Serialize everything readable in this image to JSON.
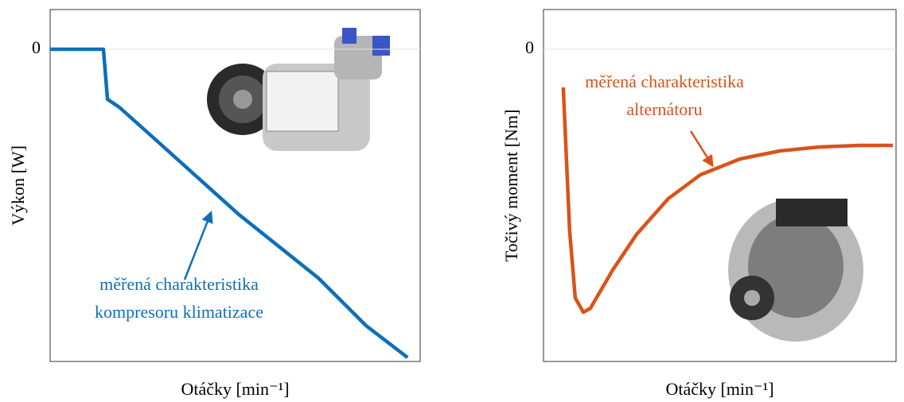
{
  "chart_data": [
    {
      "type": "line",
      "xlabel": "Otáčky [min⁻¹]",
      "ylabel": "Výkon [W]",
      "xlim": [
        0,
        100
      ],
      "ylim": [
        -7.86,
        1
      ],
      "yticks": [
        0
      ],
      "grid": true,
      "annotation": [
        "měřená charakteristika",
        "kompresoru klimatizace"
      ],
      "x": [
        0,
        14.4,
        15.5,
        18.7,
        29.5,
        51,
        72.5,
        85.4,
        96.6
      ],
      "values": [
        0,
        0,
        -1.26,
        -1.46,
        -2.36,
        -4.16,
        -5.76,
        -6.96,
        -7.76
      ],
      "color": "#0d6fba"
    },
    {
      "type": "line",
      "xlabel": "Otáčky [min⁻¹]",
      "ylabel": "Točivý moment [Nm]",
      "xlim": [
        0,
        100
      ],
      "ylim": [
        -7.86,
        1
      ],
      "yticks": [
        0
      ],
      "grid": true,
      "annotation": [
        "měřená charakteristika",
        "alternátoru"
      ],
      "x": [
        5.6,
        7.4,
        9.0,
        11.3,
        13.3,
        19.6,
        26.4,
        35.4,
        44.5,
        55.8,
        67.0,
        78.3,
        89.6,
        99.1
      ],
      "values": [
        -0.96,
        -4.56,
        -6.26,
        -6.62,
        -6.52,
        -5.56,
        -4.66,
        -3.76,
        -3.16,
        -2.76,
        -2.56,
        -2.46,
        -2.42,
        -2.42
      ],
      "color": "#d95319"
    }
  ]
}
